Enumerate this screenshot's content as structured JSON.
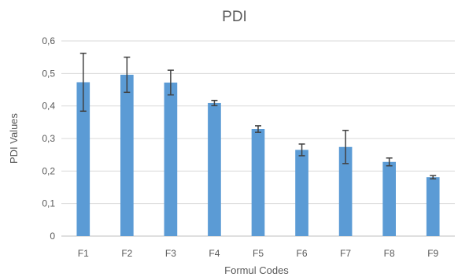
{
  "chart_data": {
    "type": "bar",
    "title": "PDI",
    "xlabel": "Formul Codes",
    "ylabel": "PDI Values",
    "categories": [
      "F1",
      "F2",
      "F3",
      "F4",
      "F5",
      "F6",
      "F7",
      "F8",
      "F9"
    ],
    "values": [
      0.473,
      0.496,
      0.472,
      0.409,
      0.329,
      0.265,
      0.274,
      0.228,
      0.181
    ],
    "error": [
      0.089,
      0.054,
      0.038,
      0.008,
      0.01,
      0.018,
      0.051,
      0.012,
      0.005
    ],
    "ylim": [
      0,
      0.6
    ],
    "yticks": [
      0,
      0.1,
      0.2,
      0.3,
      0.4,
      0.5,
      0.6
    ],
    "ytick_labels": [
      "0",
      "0,1",
      "0,2",
      "0,3",
      "0,4",
      "0,5",
      "0,6"
    ],
    "grid": true,
    "colors": {
      "bar": "#5b9bd5",
      "error_bar": "#404040",
      "gridline": "#d9d9d9"
    }
  }
}
